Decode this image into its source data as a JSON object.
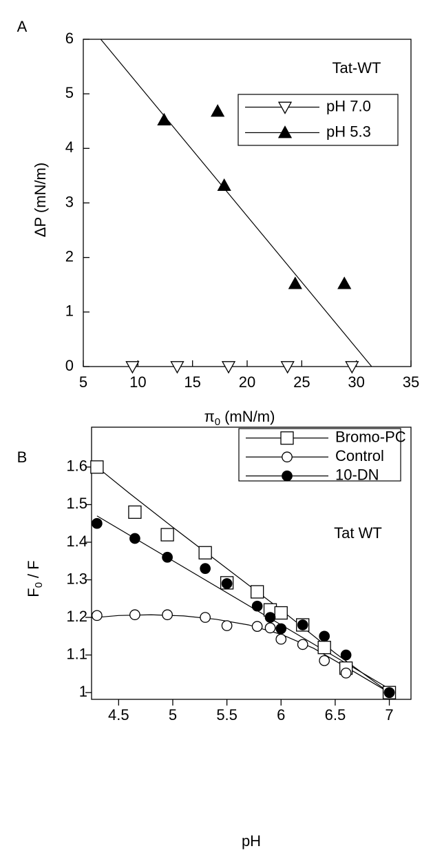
{
  "chart_data": [
    {
      "type": "scatter",
      "panel_label": "A",
      "annotation": "Tat-WT",
      "x_label": {
        "main": "π",
        "sub": "0",
        "rest": "(mN/m)"
      },
      "y_label": "ΔP (mN/m)",
      "xlim": [
        5,
        35
      ],
      "ylim": [
        0,
        6
      ],
      "xticks": [
        5,
        10,
        15,
        20,
        25,
        30,
        35
      ],
      "yticks": [
        0,
        1,
        2,
        3,
        4,
        5,
        6
      ],
      "tick_direction": "in",
      "series": [
        {
          "name": "pH 7.0",
          "marker": "triangle-down-open",
          "color": "#000000",
          "x": [
            9.5,
            13.6,
            18.3,
            23.7,
            29.6
          ],
          "values": [
            0,
            0,
            0,
            0,
            0
          ]
        },
        {
          "name": "pH 5.3",
          "marker": "triangle-up-filled",
          "color": "#000000",
          "x": [
            12.4,
            17.3,
            17.9,
            24.4,
            28.9
          ],
          "values": [
            4.52,
            4.68,
            3.32,
            1.52,
            1.52
          ]
        }
      ],
      "fit_lines": [
        {
          "color": "#000000",
          "x": [
            6.6,
            31.4
          ],
          "values": [
            6,
            0
          ]
        }
      ]
    },
    {
      "type": "scatter",
      "panel_label": "B",
      "annotation": "Tat WT",
      "x_label": {
        "main": "pH"
      },
      "y_label": {
        "main": "F",
        "sub": "0",
        "rest": "/ F"
      },
      "xlim": [
        4.25,
        7.2
      ],
      "ylim": [
        0.982,
        1.706
      ],
      "xticks": [
        4.5,
        5,
        5.5,
        6,
        6.5,
        7
      ],
      "yticks": [
        1,
        1.1,
        1.2,
        1.3,
        1.4,
        1.5,
        1.6
      ],
      "tick_direction": "out",
      "series": [
        {
          "name": "Bromo-PC",
          "marker": "square-open",
          "color": "#000000",
          "x": [
            4.3,
            4.65,
            4.95,
            5.3,
            5.5,
            5.78,
            5.9,
            6.0,
            6.2,
            6.4,
            6.6,
            7.0
          ],
          "values": [
            1.6,
            1.48,
            1.42,
            1.372,
            1.292,
            1.268,
            1.22,
            1.212,
            1.18,
            1.12,
            1.065,
            1.0
          ]
        },
        {
          "name": "Control",
          "marker": "circle-open",
          "color": "#000000",
          "x": [
            4.3,
            4.65,
            4.95,
            5.3,
            5.5,
            5.78,
            5.9,
            6.0,
            6.2,
            6.4,
            6.6,
            7.0
          ],
          "values": [
            1.205,
            1.207,
            1.207,
            1.2,
            1.178,
            1.176,
            1.172,
            1.142,
            1.128,
            1.085,
            1.052,
            1.0
          ]
        },
        {
          "name": "10-DN",
          "marker": "circle-filled",
          "color": "#000000",
          "x": [
            4.3,
            4.65,
            4.95,
            5.3,
            5.5,
            5.78,
            5.9,
            6.0,
            6.2,
            6.4,
            6.6,
            7.0
          ],
          "values": [
            1.45,
            1.41,
            1.36,
            1.33,
            1.29,
            1.23,
            1.2,
            1.17,
            1.18,
            1.15,
            1.1,
            1.0
          ]
        }
      ],
      "fit_lines": [
        {
          "color": "#000000",
          "x": [
            4.3,
            4.6,
            5.0,
            5.5,
            6.0,
            6.5,
            7.0
          ],
          "values": [
            1.6,
            1.53,
            1.44,
            1.33,
            1.22,
            1.105,
            1.0
          ]
        },
        {
          "color": "#000000",
          "x": [
            4.3,
            4.5,
            4.8,
            5.1,
            5.4,
            5.7,
            6.0,
            6.3,
            6.6,
            7.0
          ],
          "values": [
            1.2,
            1.205,
            1.207,
            1.204,
            1.195,
            1.18,
            1.155,
            1.118,
            1.068,
            1.0
          ]
        },
        {
          "color": "#000000",
          "x": [
            4.3,
            7.0
          ],
          "values": [
            1.47,
            1.01
          ]
        }
      ]
    }
  ]
}
